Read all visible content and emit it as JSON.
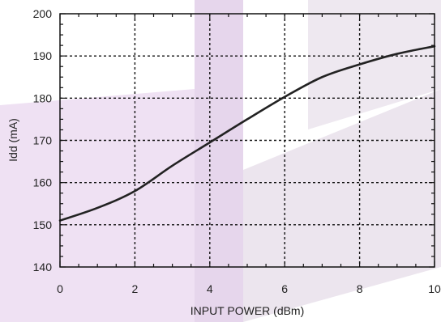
{
  "chart_data": {
    "type": "line",
    "title": "",
    "xlabel": "INPUT POWER (dBm)",
    "ylabel": "Idd (mA)",
    "xlim": [
      0,
      10
    ],
    "ylim": [
      140,
      200
    ],
    "x_ticks": [
      0,
      2,
      4,
      6,
      8,
      10
    ],
    "y_ticks": [
      140,
      150,
      160,
      170,
      180,
      190,
      200
    ],
    "grid": true,
    "grid_style": "dotted",
    "legend": "none",
    "series": [
      {
        "x": [
          0,
          1,
          2,
          3,
          4,
          5,
          6,
          7,
          8,
          9,
          10
        ],
        "y": [
          151,
          154,
          158,
          164,
          169.5,
          175,
          180.3,
          185,
          188,
          190.5,
          192.3
        ]
      }
    ]
  },
  "colors": {
    "line": "#222222",
    "grid": "#111111",
    "watermark": "#e8d6ee"
  }
}
